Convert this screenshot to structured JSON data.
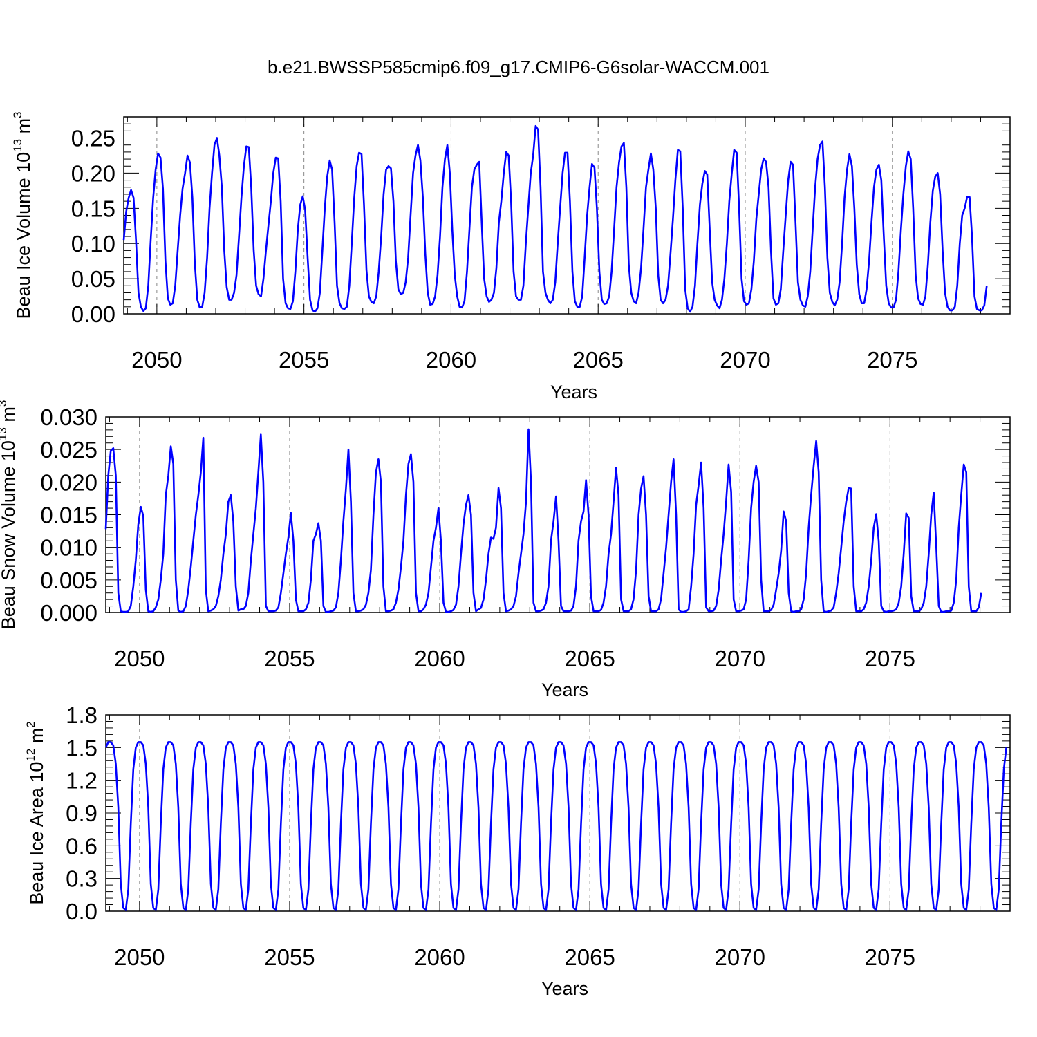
{
  "title": "b.e21.BWSSP585cmip6.f09_g17.CMIP6-G6solar-WACCM.001",
  "chart_data": [
    {
      "type": "line",
      "xlabel": "Years",
      "ylabel": "Beau Ice Volume 10",
      "ylabel_exp": "13",
      "ylabel_unit": " m",
      "ylabel_unit_exp": "3",
      "xlim": [
        2048.875,
        2079
      ],
      "ylim": [
        0,
        0.28
      ],
      "yticks": [
        "0.00",
        "0.05",
        "0.10",
        "0.15",
        "0.20",
        "0.25"
      ],
      "ytick_values": [
        0,
        0.05,
        0.1,
        0.15,
        0.2,
        0.25
      ],
      "xticks": [
        "2050",
        "2055",
        "2060",
        "2065",
        "2070",
        "2075"
      ],
      "xtick_values": [
        2050,
        2055,
        2060,
        2065,
        2070,
        2075
      ],
      "series": [
        {
          "color": "#0000ff",
          "x_start": 2048.875,
          "x_step": 0.083333,
          "values": [
            0.105,
            0.145,
            0.165,
            0.176,
            0.165,
            0.105,
            0.03,
            0.01,
            0.004,
            0.008,
            0.04,
            0.105,
            0.165,
            0.205,
            0.228,
            0.222,
            0.178,
            0.075,
            0.022,
            0.013,
            0.015,
            0.04,
            0.09,
            0.14,
            0.178,
            0.2,
            0.225,
            0.215,
            0.165,
            0.072,
            0.02,
            0.009,
            0.01,
            0.03,
            0.08,
            0.15,
            0.2,
            0.24,
            0.25,
            0.225,
            0.18,
            0.09,
            0.038,
            0.02,
            0.02,
            0.03,
            0.055,
            0.11,
            0.165,
            0.21,
            0.238,
            0.237,
            0.18,
            0.09,
            0.04,
            0.028,
            0.025,
            0.05,
            0.09,
            0.125,
            0.16,
            0.2,
            0.222,
            0.221,
            0.16,
            0.05,
            0.015,
            0.008,
            0.007,
            0.018,
            0.06,
            0.12,
            0.155,
            0.167,
            0.148,
            0.08,
            0.02,
            0.005,
            0.003,
            0.008,
            0.03,
            0.09,
            0.15,
            0.195,
            0.218,
            0.205,
            0.13,
            0.04,
            0.015,
            0.008,
            0.007,
            0.01,
            0.04,
            0.1,
            0.165,
            0.21,
            0.229,
            0.227,
            0.155,
            0.062,
            0.025,
            0.017,
            0.015,
            0.025,
            0.06,
            0.11,
            0.17,
            0.205,
            0.21,
            0.207,
            0.16,
            0.075,
            0.035,
            0.028,
            0.03,
            0.045,
            0.08,
            0.14,
            0.2,
            0.225,
            0.24,
            0.218,
            0.165,
            0.085,
            0.03,
            0.013,
            0.014,
            0.025,
            0.055,
            0.11,
            0.18,
            0.22,
            0.24,
            0.2,
            0.12,
            0.055,
            0.025,
            0.01,
            0.009,
            0.018,
            0.06,
            0.12,
            0.18,
            0.205,
            0.212,
            0.216,
            0.13,
            0.05,
            0.025,
            0.017,
            0.02,
            0.03,
            0.065,
            0.13,
            0.16,
            0.2,
            0.23,
            0.225,
            0.16,
            0.06,
            0.025,
            0.02,
            0.02,
            0.04,
            0.1,
            0.15,
            0.2,
            0.225,
            0.267,
            0.262,
            0.18,
            0.06,
            0.03,
            0.02,
            0.015,
            0.02,
            0.045,
            0.1,
            0.15,
            0.2,
            0.229,
            0.229,
            0.16,
            0.06,
            0.018,
            0.01,
            0.01,
            0.025,
            0.08,
            0.14,
            0.18,
            0.213,
            0.208,
            0.15,
            0.06,
            0.02,
            0.014,
            0.015,
            0.025,
            0.06,
            0.12,
            0.18,
            0.215,
            0.238,
            0.243,
            0.18,
            0.07,
            0.03,
            0.018,
            0.015,
            0.03,
            0.065,
            0.12,
            0.18,
            0.205,
            0.228,
            0.205,
            0.15,
            0.055,
            0.02,
            0.015,
            0.02,
            0.04,
            0.085,
            0.135,
            0.19,
            0.233,
            0.231,
            0.15,
            0.035,
            0.008,
            0.003,
            0.01,
            0.04,
            0.1,
            0.155,
            0.185,
            0.203,
            0.198,
            0.12,
            0.045,
            0.02,
            0.012,
            0.008,
            0.02,
            0.05,
            0.1,
            0.16,
            0.2,
            0.233,
            0.229,
            0.15,
            0.05,
            0.018,
            0.013,
            0.015,
            0.035,
            0.075,
            0.135,
            0.17,
            0.205,
            0.221,
            0.216,
            0.18,
            0.09,
            0.022,
            0.013,
            0.015,
            0.035,
            0.09,
            0.14,
            0.19,
            0.216,
            0.212,
            0.13,
            0.045,
            0.02,
            0.012,
            0.01,
            0.025,
            0.06,
            0.12,
            0.18,
            0.22,
            0.24,
            0.245,
            0.18,
            0.08,
            0.03,
            0.017,
            0.012,
            0.02,
            0.045,
            0.1,
            0.165,
            0.205,
            0.227,
            0.21,
            0.15,
            0.07,
            0.028,
            0.015,
            0.015,
            0.035,
            0.075,
            0.13,
            0.18,
            0.205,
            0.212,
            0.19,
            0.11,
            0.04,
            0.015,
            0.009,
            0.009,
            0.02,
            0.06,
            0.12,
            0.17,
            0.21,
            0.231,
            0.22,
            0.15,
            0.055,
            0.022,
            0.014,
            0.013,
            0.025,
            0.07,
            0.13,
            0.175,
            0.195,
            0.2,
            0.17,
            0.09,
            0.03,
            0.01,
            0.005,
            0.005,
            0.01,
            0.04,
            0.1,
            0.14,
            0.15,
            0.166,
            0.166,
            0.11,
            0.025,
            0.007,
            0.005,
            0.005,
            0.012,
            0.04
          ]
        }
      ]
    },
    {
      "type": "line",
      "xlabel": "Years",
      "ylabel": "Beau Snow Volume 10",
      "ylabel_exp": "13",
      "ylabel_unit": " m",
      "ylabel_unit_exp": "3",
      "xlim": [
        2048.875,
        2079
      ],
      "ylim": [
        0,
        0.03
      ],
      "yticks": [
        "0.000",
        "0.005",
        "0.010",
        "0.015",
        "0.020",
        "0.025",
        "0.030"
      ],
      "ytick_values": [
        0,
        0.005,
        0.01,
        0.015,
        0.02,
        0.025,
        0.03
      ],
      "xticks": [
        "2050",
        "2055",
        "2060",
        "2065",
        "2070",
        "2075"
      ],
      "xtick_values": [
        2050,
        2055,
        2060,
        2065,
        2070,
        2075
      ],
      "series": [
        {
          "color": "#0000ff",
          "x_start": 2048.875,
          "x_step": 0.083333,
          "values": [
            0.0128,
            0.021,
            0.0248,
            0.0252,
            0.021,
            0.003,
            0.0002,
            0.0001,
            0.0001,
            0.0002,
            0.001,
            0.004,
            0.008,
            0.0135,
            0.0162,
            0.0148,
            0.0035,
            0.0002,
            0.0001,
            0.0002,
            0.0008,
            0.002,
            0.005,
            0.009,
            0.018,
            0.021,
            0.0255,
            0.0228,
            0.005,
            0.0003,
            0.0001,
            0.0002,
            0.001,
            0.0035,
            0.007,
            0.011,
            0.015,
            0.018,
            0.0215,
            0.0268,
            0.0035,
            0.0002,
            0.0003,
            0.0005,
            0.001,
            0.0025,
            0.005,
            0.009,
            0.012,
            0.017,
            0.018,
            0.014,
            0.004,
            0.0003,
            0.0005,
            0.0005,
            0.001,
            0.003,
            0.008,
            0.012,
            0.016,
            0.0215,
            0.0273,
            0.02,
            0.001,
            0.0002,
            0.0002,
            0.0002,
            0.0003,
            0.0008,
            0.003,
            0.006,
            0.009,
            0.0115,
            0.0153,
            0.011,
            0.002,
            0.0002,
            0.0002,
            0.0002,
            0.0005,
            0.0015,
            0.005,
            0.011,
            0.012,
            0.0137,
            0.011,
            0.001,
            0.0001,
            0.0001,
            0.0002,
            0.0003,
            0.0008,
            0.003,
            0.008,
            0.014,
            0.019,
            0.025,
            0.017,
            0.003,
            0.0002,
            0.0002,
            0.0003,
            0.0005,
            0.0012,
            0.003,
            0.0065,
            0.015,
            0.0215,
            0.0235,
            0.02,
            0.004,
            0.0002,
            0.0002,
            0.0003,
            0.0005,
            0.0015,
            0.0035,
            0.007,
            0.011,
            0.018,
            0.0228,
            0.0243,
            0.02,
            0.003,
            0.0002,
            0.0002,
            0.0005,
            0.0012,
            0.003,
            0.007,
            0.011,
            0.013,
            0.016,
            0.011,
            0.0015,
            0.0001,
            0.0001,
            0.0002,
            0.0004,
            0.0012,
            0.004,
            0.009,
            0.0135,
            0.0165,
            0.018,
            0.015,
            0.003,
            0.0002,
            0.0005,
            0.0007,
            0.002,
            0.005,
            0.009,
            0.0115,
            0.0113,
            0.013,
            0.0191,
            0.016,
            0.003,
            0.0002,
            0.0003,
            0.0005,
            0.001,
            0.0025,
            0.006,
            0.009,
            0.012,
            0.017,
            0.0281,
            0.02,
            0.0015,
            0.0002,
            0.0002,
            0.0003,
            0.0005,
            0.0015,
            0.004,
            0.011,
            0.014,
            0.0178,
            0.011,
            0.001,
            0.0002,
            0.0002,
            0.0002,
            0.0003,
            0.001,
            0.004,
            0.011,
            0.014,
            0.0155,
            0.0203,
            0.015,
            0.0025,
            0.0002,
            0.0002,
            0.0002,
            0.0004,
            0.0015,
            0.004,
            0.009,
            0.012,
            0.017,
            0.0222,
            0.018,
            0.002,
            0.0002,
            0.0002,
            0.0002,
            0.0005,
            0.002,
            0.0065,
            0.015,
            0.019,
            0.0209,
            0.015,
            0.0025,
            0.0002,
            0.0002,
            0.0002,
            0.0005,
            0.002,
            0.006,
            0.01,
            0.015,
            0.02,
            0.0235,
            0.015,
            0.0005,
            0.0001,
            0.0001,
            0.0002,
            0.0005,
            0.004,
            0.009,
            0.0165,
            0.0195,
            0.023,
            0.016,
            0.0008,
            0.0002,
            0.0002,
            0.0003,
            0.001,
            0.0035,
            0.008,
            0.012,
            0.017,
            0.0227,
            0.0185,
            0.002,
            0.0002,
            0.0002,
            0.0003,
            0.0005,
            0.002,
            0.008,
            0.016,
            0.02,
            0.0225,
            0.02,
            0.005,
            0.0002,
            0.0002,
            0.0002,
            0.0004,
            0.0012,
            0.0035,
            0.006,
            0.0095,
            0.0155,
            0.014,
            0.003,
            0.0002,
            0.0001,
            0.0002,
            0.0002,
            0.0005,
            0.002,
            0.006,
            0.013,
            0.018,
            0.0225,
            0.0263,
            0.0215,
            0.005,
            0.0002,
            0.0001,
            0.0002,
            0.0003,
            0.0008,
            0.003,
            0.006,
            0.01,
            0.014,
            0.017,
            0.0191,
            0.019,
            0.004,
            0.0002,
            0.0002,
            0.0002,
            0.0005,
            0.0015,
            0.004,
            0.008,
            0.013,
            0.0151,
            0.011,
            0.001,
            0.0002,
            0.0001,
            0.0002,
            0.0002,
            0.0003,
            0.0005,
            0.0015,
            0.004,
            0.009,
            0.0152,
            0.0145,
            0.0025,
            0.0002,
            0.0002,
            0.0002,
            0.0005,
            0.0015,
            0.004,
            0.009,
            0.015,
            0.0184,
            0.01,
            0.001,
            0.0001,
            0.0001,
            0.0002,
            0.0002,
            0.0003,
            0.0015,
            0.005,
            0.013,
            0.018,
            0.0227,
            0.0215,
            0.004,
            0.0002,
            0.0002,
            0.0002,
            0.0008,
            0.003
          ]
        }
      ]
    },
    {
      "type": "line",
      "xlabel": "Years",
      "ylabel": "Beau Ice Area 10",
      "ylabel_exp": "12",
      "ylabel_unit": " m",
      "ylabel_unit_exp": "2",
      "xlim": [
        2048.875,
        2079
      ],
      "ylim": [
        0,
        1.8
      ],
      "yticks": [
        "0.0",
        "0.3",
        "0.6",
        "0.9",
        "1.2",
        "1.5",
        "1.8"
      ],
      "ytick_values": [
        0,
        0.3,
        0.6,
        0.9,
        1.2,
        1.5,
        1.8
      ],
      "xticks": [
        "2050",
        "2055",
        "2060",
        "2065",
        "2070",
        "2075"
      ],
      "xtick_values": [
        2050,
        2055,
        2060,
        2065,
        2070,
        2075
      ],
      "series": [
        {
          "color": "#0000ff",
          "x_start": 2048.875,
          "pattern_base": [
            1.55,
            1.55,
            1.52,
            1.35,
            0.95,
            0.25,
            0.03,
            0.01,
            0.2,
            0.8,
            1.3,
            1.5
          ],
          "pattern_cycles": 30,
          "pattern_phase": 11
        }
      ]
    }
  ]
}
